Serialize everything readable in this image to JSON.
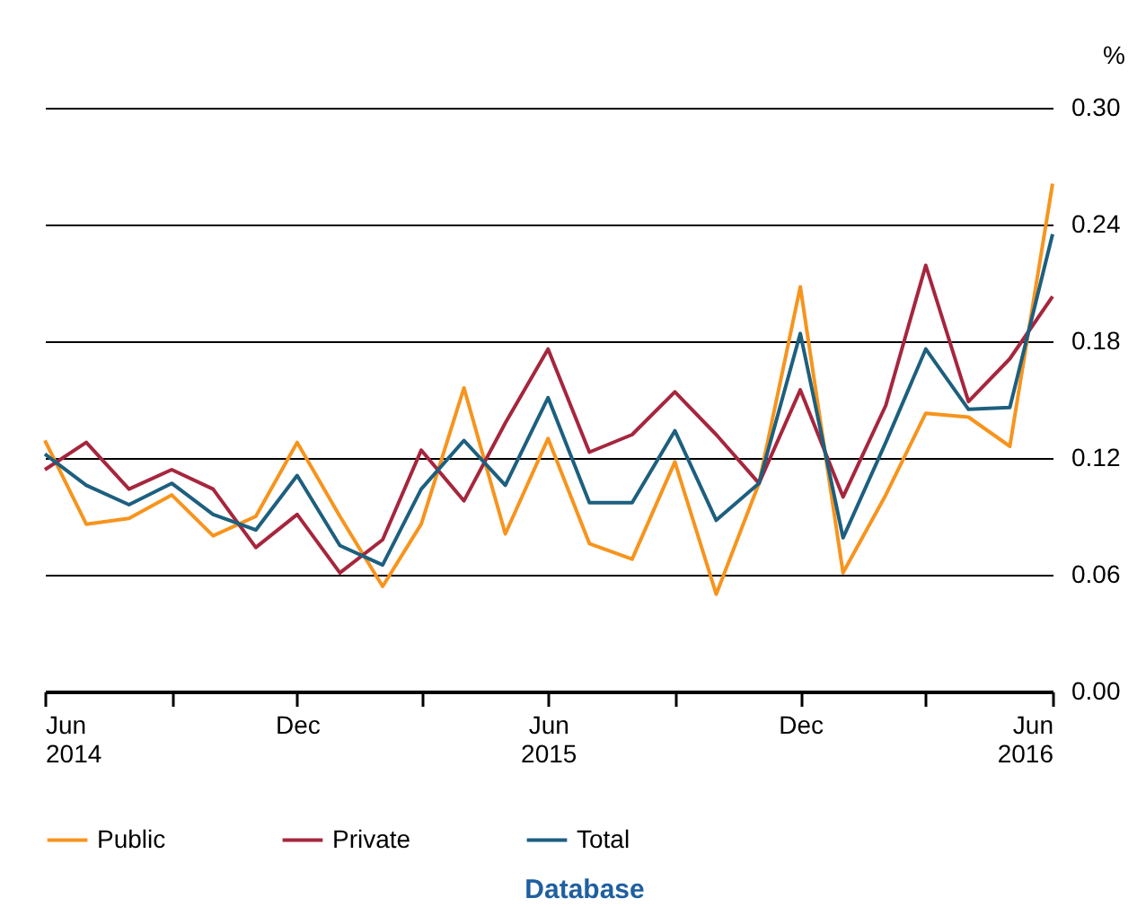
{
  "chart_data": {
    "type": "line",
    "ylabel": "%",
    "x": [
      "2014-06",
      "2014-07",
      "2014-08",
      "2014-09",
      "2014-10",
      "2014-11",
      "2014-12",
      "2015-01",
      "2015-02",
      "2015-03",
      "2015-04",
      "2015-05",
      "2015-06",
      "2015-07",
      "2015-08",
      "2015-09",
      "2015-10",
      "2015-11",
      "2015-12",
      "2016-01",
      "2016-02",
      "2016-03",
      "2016-04",
      "2016-05",
      "2016-06"
    ],
    "series": [
      {
        "name": "Public",
        "color": "#f7941d",
        "values": [
          0.129,
          0.086,
          0.089,
          0.101,
          0.08,
          0.09,
          0.128,
          0.09,
          0.054,
          0.086,
          0.156,
          0.081,
          0.13,
          0.076,
          0.068,
          0.118,
          0.05,
          0.107,
          0.208,
          0.061,
          0.101,
          0.143,
          0.141,
          0.126,
          0.261
        ]
      },
      {
        "name": "Private",
        "color": "#a6263d",
        "values": [
          0.114,
          0.128,
          0.104,
          0.114,
          0.104,
          0.074,
          0.091,
          0.061,
          0.078,
          0.124,
          0.098,
          0.138,
          0.176,
          0.123,
          0.132,
          0.154,
          0.132,
          0.107,
          0.155,
          0.1,
          0.147,
          0.219,
          0.149,
          0.171,
          0.203
        ]
      },
      {
        "name": "Total",
        "color": "#1d5f7f",
        "values": [
          0.122,
          0.106,
          0.096,
          0.107,
          0.091,
          0.083,
          0.111,
          0.075,
          0.065,
          0.104,
          0.129,
          0.106,
          0.151,
          0.097,
          0.097,
          0.134,
          0.088,
          0.107,
          0.184,
          0.079,
          0.128,
          0.176,
          0.145,
          0.146,
          0.235
        ]
      }
    ],
    "xlim": [
      "2014-06",
      "2016-06"
    ],
    "xticks": [
      {
        "value": "2014-06",
        "label": "Jun\n2014"
      },
      {
        "value": "2014-09",
        "label": null
      },
      {
        "value": "2014-12",
        "label": "Dec"
      },
      {
        "value": "2015-03",
        "label": null
      },
      {
        "value": "2015-06",
        "label": "Jun\n2015"
      },
      {
        "value": "2015-09",
        "label": null
      },
      {
        "value": "2015-12",
        "label": "Dec"
      },
      {
        "value": "2016-03",
        "label": null
      },
      {
        "value": "2016-06",
        "label": "Jun\n2016"
      }
    ],
    "ylim": [
      0,
      0.3
    ],
    "yticks": [
      {
        "value": 0,
        "label": "0.00"
      },
      {
        "value": 0.06,
        "label": "0.06"
      },
      {
        "value": 0.12,
        "label": "0.12"
      },
      {
        "value": 0.18,
        "label": "0.18"
      },
      {
        "value": 0.24,
        "label": "0.24"
      },
      {
        "value": 0.3,
        "label": "0.30"
      }
    ],
    "grid": "y",
    "legend": "bottom",
    "marker": "none",
    "line_style": "solid",
    "annotations": [
      "Database"
    ]
  }
}
